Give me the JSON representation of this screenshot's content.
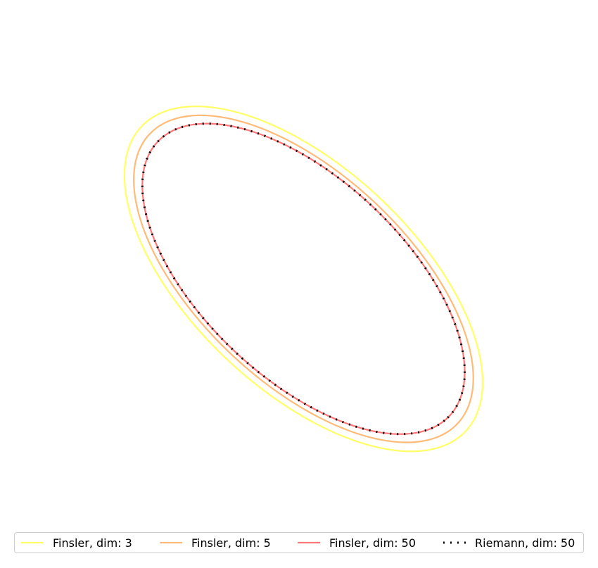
{
  "chart_data": {
    "type": "line",
    "title": "",
    "xlabel": "",
    "ylabel": "",
    "axes_visible": false,
    "grid": false,
    "xlim": [
      -1,
      1
    ],
    "ylim": [
      -1,
      1
    ],
    "legend_placement": "bottom",
    "series": [
      {
        "name": "Finsler, dim: 3",
        "color": "#ffff66",
        "style": "solid",
        "curve": {
          "cx": 0.02,
          "cy": -0.02,
          "a": 1.0,
          "b": 0.5,
          "angle_deg": -45
        }
      },
      {
        "name": "Finsler, dim: 5",
        "color": "#ffbb77",
        "style": "solid",
        "curve": {
          "cx": 0.02,
          "cy": -0.02,
          "a": 0.95,
          "b": 0.47,
          "angle_deg": -45
        }
      },
      {
        "name": "Finsler, dim: 50",
        "color": "#ff7777",
        "style": "solid",
        "curve": {
          "cx": 0.02,
          "cy": -0.02,
          "a": 0.9,
          "b": 0.45,
          "angle_deg": -45
        }
      },
      {
        "name": "Riemann, dim: 50",
        "color": "#000000",
        "style": "dotted",
        "curve": {
          "cx": 0.02,
          "cy": -0.02,
          "a": 0.9,
          "b": 0.45,
          "angle_deg": -45
        }
      }
    ]
  }
}
